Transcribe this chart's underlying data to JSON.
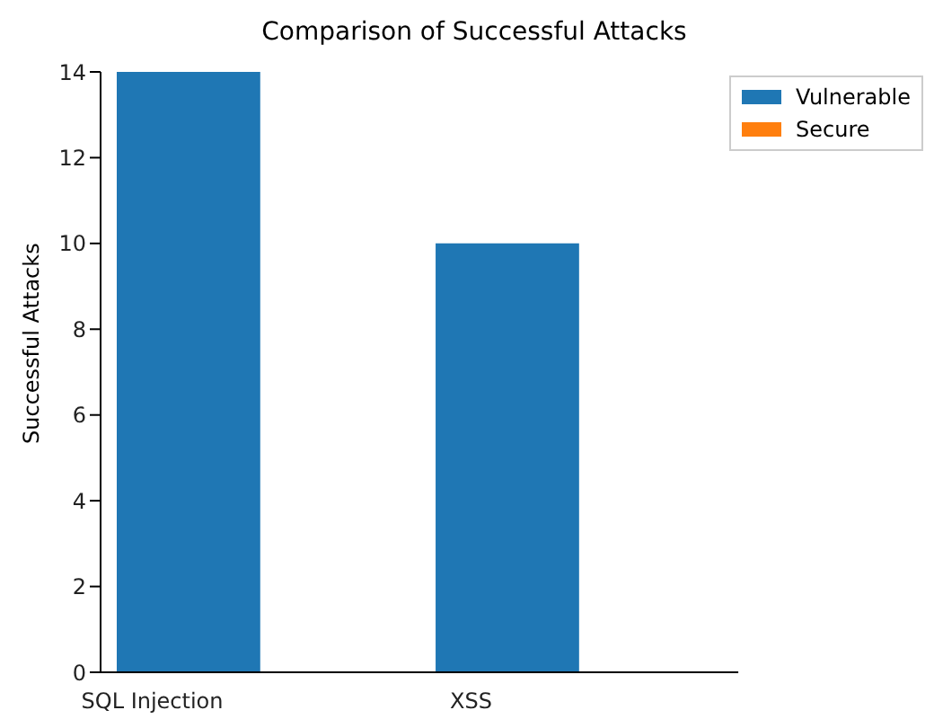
{
  "chart_data": {
    "type": "bar",
    "title": "Comparison of Successful Attacks",
    "ylabel": "Successful Attacks",
    "categories": [
      "SQL Injection",
      "XSS"
    ],
    "series": [
      {
        "name": "Vulnerable",
        "color": "#1f77b4",
        "values": [
          14,
          10
        ]
      },
      {
        "name": "Secure",
        "color": "#ff7f0e",
        "values": [
          0,
          0
        ]
      }
    ],
    "ylim": [
      0,
      14
    ],
    "yticks": [
      0,
      2,
      4,
      6,
      8,
      10,
      12,
      14
    ],
    "grid": false,
    "legend": "top right"
  }
}
